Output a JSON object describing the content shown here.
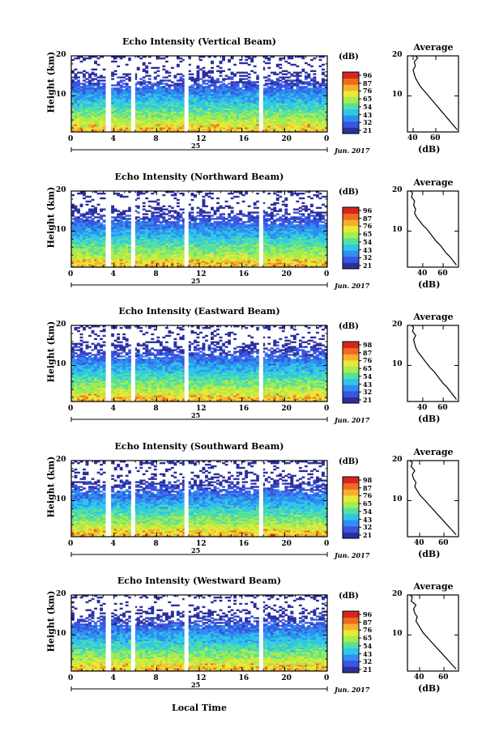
{
  "chart_data": [
    {
      "type": "heatmap",
      "title": "Echo Intensity (Vertical Beam)",
      "ylabel": "Height (km)",
      "x_ticks": [
        "0",
        "4",
        "8",
        "12",
        "16",
        "20",
        "0"
      ],
      "day": "25",
      "date": "Jun. 2017",
      "y_ticks": [
        "20",
        "10"
      ],
      "colorbar_unit": "(dB)",
      "colorbar_ticks": [
        "96",
        "87",
        "76",
        "65",
        "54",
        "43",
        "32",
        "21"
      ],
      "gaps_hours": [
        3.5,
        5.8,
        10.8,
        17.8
      ],
      "average": {
        "title": "Average",
        "unit": "(dB)",
        "x_ticks": [
          "40",
          "60"
        ],
        "y_ticks": [
          "20",
          "10"
        ],
        "xlim": [
          35,
          80
        ],
        "profile": [
          [
            79,
            1.5
          ],
          [
            76,
            2.5
          ],
          [
            73,
            3.5
          ],
          [
            70,
            4.5
          ],
          [
            67,
            5.5
          ],
          [
            64,
            6.5
          ],
          [
            61,
            7.5
          ],
          [
            58,
            8.5
          ],
          [
            55,
            9.5
          ],
          [
            52,
            10.5
          ],
          [
            49,
            11.5
          ],
          [
            46,
            12.5
          ],
          [
            44,
            13.5
          ],
          [
            42,
            14.5
          ],
          [
            41,
            15.5
          ],
          [
            40,
            16.5
          ],
          [
            42,
            17.5
          ],
          [
            41,
            18.5
          ],
          [
            44,
            19.5
          ],
          [
            42,
            20
          ]
        ]
      }
    },
    {
      "type": "heatmap",
      "title": "Echo Intensity (Northward Beam)",
      "ylabel": "Height (km)",
      "x_ticks": [
        "0",
        "4",
        "8",
        "12",
        "16",
        "20",
        "0"
      ],
      "day": "25",
      "date": "Jun. 2017",
      "y_ticks": [
        "20",
        "10"
      ],
      "colorbar_unit": "(dB)",
      "colorbar_ticks": [
        "96",
        "87",
        "76",
        "65",
        "54",
        "43",
        "32",
        "21"
      ],
      "gaps_hours": [
        3.5,
        5.8,
        10.8,
        17.8
      ],
      "average": {
        "title": "Average",
        "unit": "(dB)",
        "x_ticks": [
          "40",
          "60"
        ],
        "y_ticks": [
          "20",
          "10"
        ],
        "xlim": [
          25,
          75
        ],
        "profile": [
          [
            73,
            1.5
          ],
          [
            70,
            2.5
          ],
          [
            67,
            3.5
          ],
          [
            63,
            4.5
          ],
          [
            60,
            5.5
          ],
          [
            57,
            6.5
          ],
          [
            53,
            7.5
          ],
          [
            50,
            8.5
          ],
          [
            47,
            9.5
          ],
          [
            44,
            10.5
          ],
          [
            40,
            11.5
          ],
          [
            37,
            12.5
          ],
          [
            34,
            13.5
          ],
          [
            32,
            14.5
          ],
          [
            33,
            15.5
          ],
          [
            31,
            16.5
          ],
          [
            32,
            17.5
          ],
          [
            29,
            18.5
          ],
          [
            30,
            19.5
          ],
          [
            28,
            20
          ]
        ]
      }
    },
    {
      "type": "heatmap",
      "title": "Echo Intensity (Eastward Beam)",
      "ylabel": "Height (km)",
      "x_ticks": [
        "0",
        "4",
        "8",
        "12",
        "16",
        "20",
        "0"
      ],
      "day": "25",
      "date": "Jun. 2017",
      "y_ticks": [
        "20",
        "10"
      ],
      "colorbar_unit": "(dB)",
      "colorbar_ticks": [
        "98",
        "87",
        "76",
        "65",
        "54",
        "43",
        "32",
        "21"
      ],
      "gaps_hours": [
        3.5,
        5.8,
        10.8,
        17.8
      ],
      "average": {
        "title": "Average",
        "unit": "(dB)",
        "x_ticks": [
          "40",
          "60"
        ],
        "y_ticks": [
          "20",
          "10"
        ],
        "xlim": [
          25,
          75
        ],
        "profile": [
          [
            73,
            1.5
          ],
          [
            70,
            2.5
          ],
          [
            67,
            3.5
          ],
          [
            64,
            4.5
          ],
          [
            60,
            5.5
          ],
          [
            57,
            6.5
          ],
          [
            54,
            7.5
          ],
          [
            51,
            8.5
          ],
          [
            47,
            9.5
          ],
          [
            44,
            10.5
          ],
          [
            41,
            11.5
          ],
          [
            38,
            12.5
          ],
          [
            35,
            13.5
          ],
          [
            33,
            14.5
          ],
          [
            32,
            15.5
          ],
          [
            31,
            16.5
          ],
          [
            33,
            17.5
          ],
          [
            30,
            18.5
          ],
          [
            31,
            19.5
          ],
          [
            29,
            20
          ]
        ]
      }
    },
    {
      "type": "heatmap",
      "title": "Echo Intensity (Southward Beam)",
      "ylabel": "Height (km)",
      "x_ticks": [
        "0",
        "4",
        "8",
        "12",
        "16",
        "20",
        "0"
      ],
      "day": "25",
      "date": "Jun. 2017",
      "y_ticks": [
        "20",
        "10"
      ],
      "colorbar_unit": "(dB)",
      "colorbar_ticks": [
        "98",
        "87",
        "76",
        "65",
        "54",
        "43",
        "32",
        "21"
      ],
      "gaps_hours": [
        3.5,
        5.8,
        10.8,
        17.8
      ],
      "average": {
        "title": "Average",
        "unit": "(dB)",
        "x_ticks": [
          "40",
          "60"
        ],
        "y_ticks": [
          "20",
          "10"
        ],
        "xlim": [
          30,
          72
        ],
        "profile": [
          [
            70,
            1.5
          ],
          [
            67,
            2.5
          ],
          [
            64,
            3.5
          ],
          [
            61,
            4.5
          ],
          [
            58,
            5.5
          ],
          [
            55,
            6.5
          ],
          [
            52,
            7.5
          ],
          [
            49,
            8.5
          ],
          [
            46,
            9.5
          ],
          [
            43,
            10.5
          ],
          [
            40,
            11.5
          ],
          [
            38,
            12.5
          ],
          [
            36,
            13.5
          ],
          [
            37,
            14.5
          ],
          [
            35,
            15.5
          ],
          [
            34,
            16.5
          ],
          [
            36,
            17.5
          ],
          [
            33,
            18.5
          ],
          [
            34,
            19.5
          ],
          [
            32,
            20
          ]
        ]
      }
    },
    {
      "type": "heatmap",
      "title": "Echo Intensity (Westward Beam)",
      "ylabel": "Height (km)",
      "x_ticks": [
        "0",
        "4",
        "8",
        "12",
        "16",
        "20",
        "0"
      ],
      "day": "25",
      "date": "Jun. 2017",
      "y_ticks": [
        "20",
        "10"
      ],
      "colorbar_unit": "(dB)",
      "colorbar_ticks": [
        "96",
        "87",
        "76",
        "65",
        "54",
        "43",
        "32",
        "21"
      ],
      "gaps_hours": [
        3.5,
        5.8,
        10.8,
        17.8
      ],
      "average": {
        "title": "Average",
        "unit": "(dB)",
        "x_ticks": [
          "40",
          "60"
        ],
        "y_ticks": [
          "20",
          "10"
        ],
        "xlim": [
          30,
          72
        ],
        "profile": [
          [
            70,
            1.5
          ],
          [
            67,
            2.5
          ],
          [
            64,
            3.5
          ],
          [
            61,
            4.5
          ],
          [
            58,
            5.5
          ],
          [
            55,
            6.5
          ],
          [
            52,
            7.5
          ],
          [
            49,
            8.5
          ],
          [
            46,
            9.5
          ],
          [
            43,
            10.5
          ],
          [
            41,
            11.5
          ],
          [
            39,
            12.5
          ],
          [
            37,
            13.5
          ],
          [
            38,
            14.5
          ],
          [
            36,
            15.5
          ],
          [
            35,
            16.5
          ],
          [
            37,
            17.5
          ],
          [
            33,
            18.5
          ],
          [
            34,
            19.5
          ],
          [
            32,
            20
          ]
        ]
      }
    }
  ],
  "xlabel": "Local Time",
  "colors": {
    "colormap": [
      "#2b2f9e",
      "#3a55e0",
      "#2f8ff0",
      "#30c6e8",
      "#56e0a0",
      "#a6ec4c",
      "#e8e83a",
      "#f6b02c",
      "#f06a20",
      "#d4261c"
    ]
  }
}
